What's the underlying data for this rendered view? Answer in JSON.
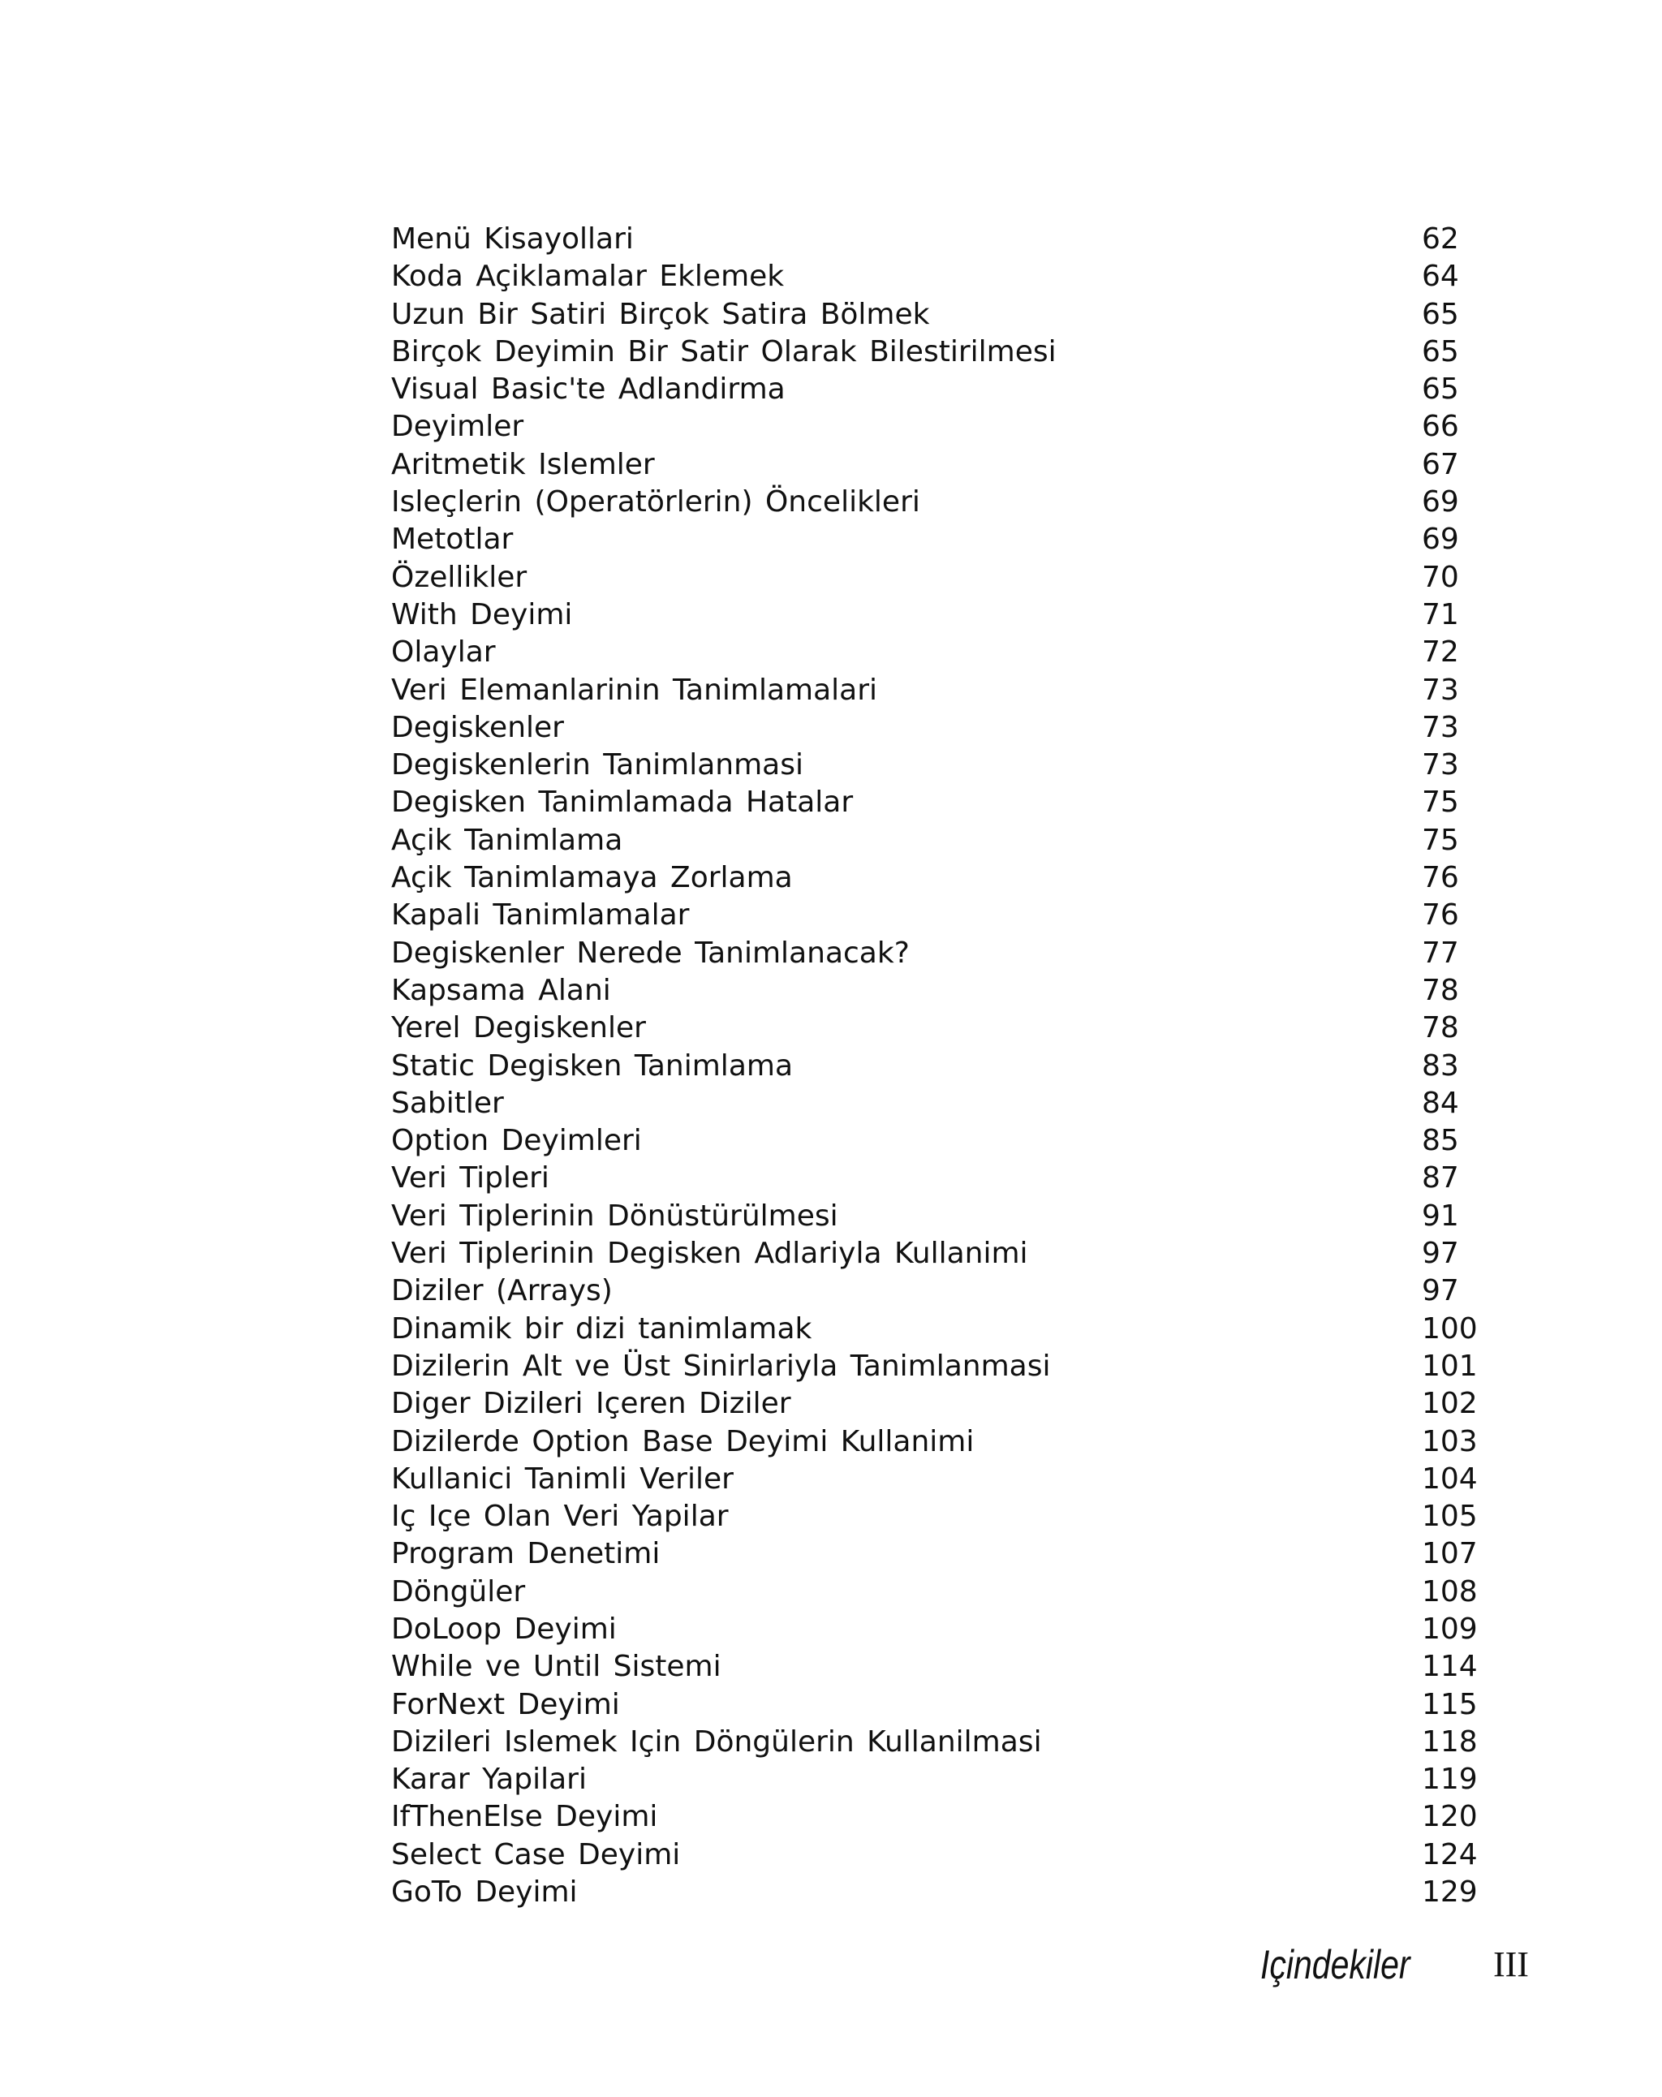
{
  "toc": [
    {
      "title": "Menü Kisayollari",
      "page": "62"
    },
    {
      "title": "Koda Açiklamalar Eklemek",
      "page": "64"
    },
    {
      "title": "Uzun Bir Satiri Birçok Satira Bölmek",
      "page": "65"
    },
    {
      "title": "Birçok Deyimin Bir Satir Olarak Bilestirilmesi",
      "page": "65"
    },
    {
      "title": "Visual Basic'te Adlandirma",
      "page": "65"
    },
    {
      "title": "Deyimler",
      "page": "66"
    },
    {
      "title": "Aritmetik Islemler",
      "page": "67"
    },
    {
      "title": "Isleçlerin (Operatörlerin) Öncelikleri",
      "page": "69"
    },
    {
      "title": "Metotlar",
      "page": "69"
    },
    {
      "title": "Özellikler",
      "page": "70"
    },
    {
      "title": "With Deyimi",
      "page": "71"
    },
    {
      "title": "Olaylar",
      "page": "72"
    },
    {
      "title": "Veri Elemanlarinin Tanimlamalari",
      "page": "73"
    },
    {
      "title": "Degiskenler",
      "page": "73"
    },
    {
      "title": "Degiskenlerin Tanimlanmasi",
      "page": "73"
    },
    {
      "title": "Degisken Tanimlamada Hatalar",
      "page": "75"
    },
    {
      "title": "Açik Tanimlama",
      "page": "75"
    },
    {
      "title": "Açik Tanimlamaya Zorlama",
      "page": "76"
    },
    {
      "title": "Kapali Tanimlamalar",
      "page": "76"
    },
    {
      "title": "Degiskenler Nerede Tanimlanacak?",
      "page": "77"
    },
    {
      "title": "Kapsama Alani",
      "page": "78"
    },
    {
      "title": "Yerel Degiskenler",
      "page": "78"
    },
    {
      "title": "Static Degisken Tanimlama",
      "page": "83"
    },
    {
      "title": "Sabitler",
      "page": "84"
    },
    {
      "title": "Option Deyimleri",
      "page": "85"
    },
    {
      "title": "Veri Tipleri",
      "page": "87"
    },
    {
      "title": "Veri Tiplerinin Dönüstürülmesi",
      "page": "91"
    },
    {
      "title": "Veri Tiplerinin Degisken Adlariyla Kullanimi",
      "page": "97"
    },
    {
      "title": "Diziler (Arrays)",
      "page": "97"
    },
    {
      "title": "Dinamik bir dizi tanimlamak",
      "page": "100"
    },
    {
      "title": "Dizilerin Alt ve Üst Sinirlariyla Tanimlanmasi",
      "page": "101"
    },
    {
      "title": "Diger Dizileri Içeren Diziler",
      "page": "102"
    },
    {
      "title": "Dizilerde Option Base Deyimi Kullanimi",
      "page": "103"
    },
    {
      "title": "Kullanici Tanimli Veriler",
      "page": "104"
    },
    {
      "title": "Iç Içe Olan Veri Yapilar",
      "page": "105"
    },
    {
      "title": "Program Denetimi",
      "page": "107"
    },
    {
      "title": "Döngüler",
      "page": "108"
    },
    {
      "title": "DoLoop Deyimi",
      "page": "109"
    },
    {
      "title": "While ve Until Sistemi",
      "page": "114"
    },
    {
      "title": "ForNext Deyimi",
      "page": "115"
    },
    {
      "title": "Dizileri Islemek Için Döngülerin Kullanilmasi",
      "page": "118"
    },
    {
      "title": "Karar Yapilari",
      "page": "119"
    },
    {
      "title": "IfThenElse Deyimi",
      "page": "120"
    },
    {
      "title": "Select Case Deyimi",
      "page": "124"
    },
    {
      "title": "GoTo Deyimi",
      "page": "129"
    }
  ],
  "footer": {
    "title": "Içindekiler",
    "page_number": "III"
  }
}
